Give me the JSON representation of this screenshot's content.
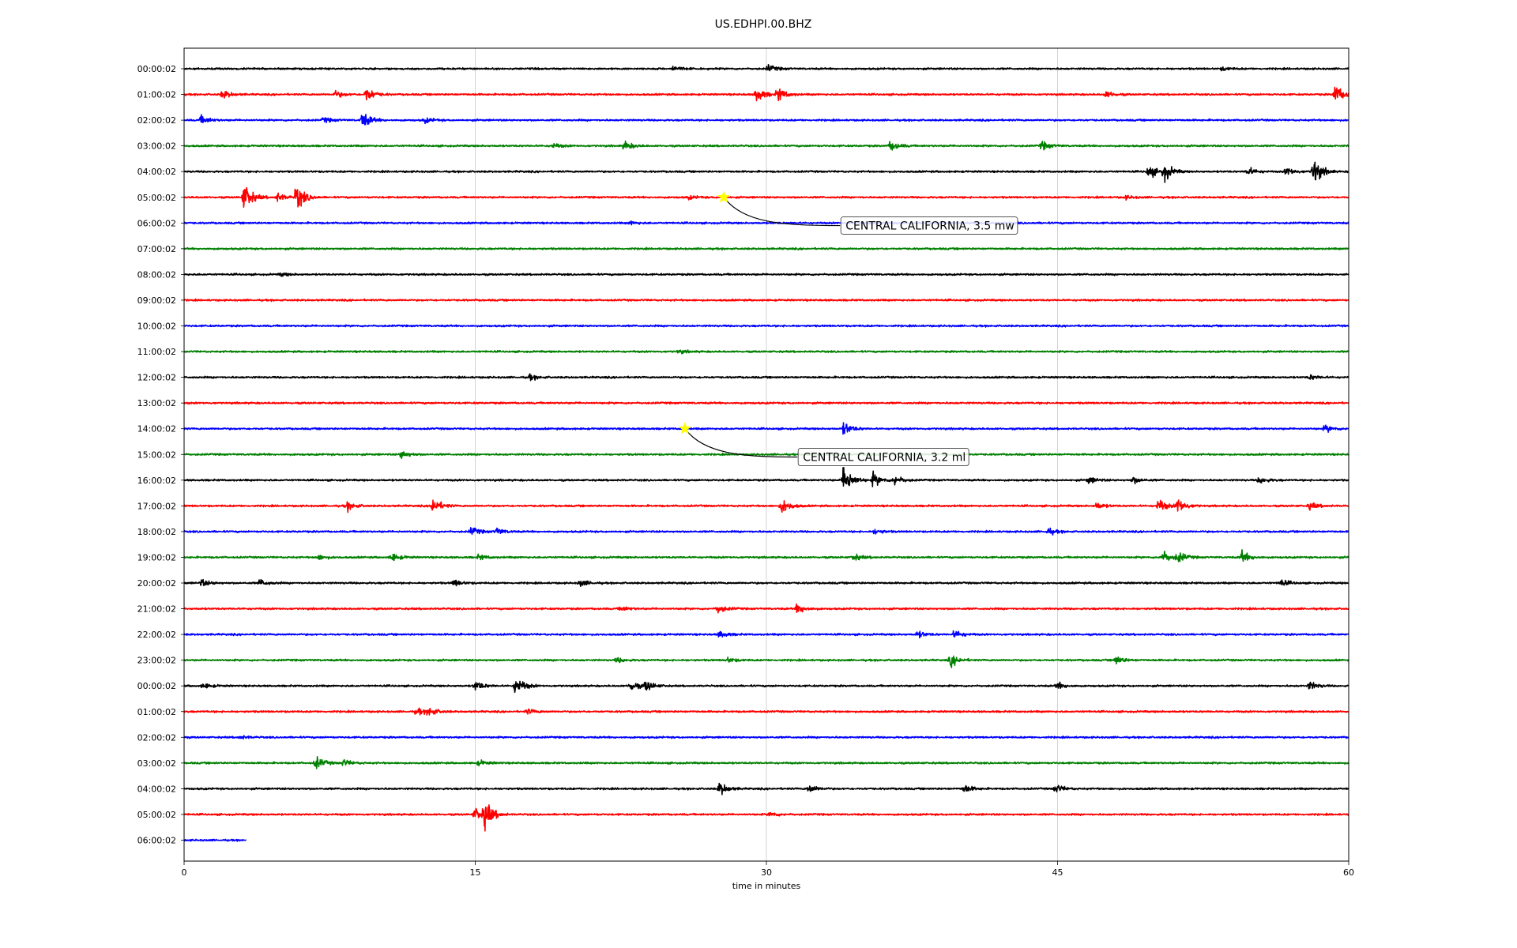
{
  "chart_data": {
    "type": "line",
    "title": "US.EDHPI.00.BHZ",
    "xlabel": "time in minutes",
    "ylabel": "",
    "xlim": [
      0,
      60
    ],
    "x_ticks": [
      "0",
      "15",
      "30",
      "45",
      "60"
    ],
    "x_tick_values": [
      0,
      15,
      30,
      45,
      60
    ],
    "grid": "vertical",
    "legend": "none",
    "trace_colors": [
      "#000000",
      "#ff0000",
      "#0000ff",
      "#008000"
    ],
    "row_labels": [
      "00:00:02",
      "01:00:02",
      "02:00:02",
      "03:00:02",
      "04:00:02",
      "05:00:02",
      "06:00:02",
      "07:00:02",
      "08:00:02",
      "09:00:02",
      "10:00:02",
      "11:00:02",
      "12:00:02",
      "13:00:02",
      "14:00:02",
      "15:00:02",
      "16:00:02",
      "17:00:02",
      "18:00:02",
      "19:00:02",
      "20:00:02",
      "21:00:02",
      "22:00:02",
      "23:00:02",
      "00:00:02",
      "01:00:02",
      "02:00:02",
      "03:00:02",
      "04:00:02",
      "05:00:02",
      "06:00:02"
    ],
    "last_row_end_minute": 3.2,
    "events": [
      {
        "row": 0,
        "t": 25.2,
        "amp": 0.3
      },
      {
        "row": 0,
        "t": 30.1,
        "amp": 0.4
      },
      {
        "row": 0,
        "t": 53.5,
        "amp": 0.2
      },
      {
        "row": 1,
        "t": 2.0,
        "amp": 0.5
      },
      {
        "row": 1,
        "t": 7.8,
        "amp": 0.4
      },
      {
        "row": 1,
        "t": 9.4,
        "amp": 0.9
      },
      {
        "row": 1,
        "t": 29.5,
        "amp": 0.9
      },
      {
        "row": 1,
        "t": 30.6,
        "amp": 0.8
      },
      {
        "row": 1,
        "t": 47.5,
        "amp": 0.4
      },
      {
        "row": 1,
        "t": 59.3,
        "amp": 1.2
      },
      {
        "row": 2,
        "t": 0.9,
        "amp": 0.5
      },
      {
        "row": 2,
        "t": 7.2,
        "amp": 0.3
      },
      {
        "row": 2,
        "t": 9.2,
        "amp": 1.0
      },
      {
        "row": 2,
        "t": 12.4,
        "amp": 0.3
      },
      {
        "row": 3,
        "t": 19.0,
        "amp": 0.3
      },
      {
        "row": 3,
        "t": 22.7,
        "amp": 0.5
      },
      {
        "row": 3,
        "t": 36.4,
        "amp": 0.6
      },
      {
        "row": 3,
        "t": 44.2,
        "amp": 0.5
      },
      {
        "row": 4,
        "t": 49.7,
        "amp": 0.8
      },
      {
        "row": 4,
        "t": 50.5,
        "amp": 1.0
      },
      {
        "row": 4,
        "t": 54.8,
        "amp": 0.5
      },
      {
        "row": 4,
        "t": 56.8,
        "amp": 0.5
      },
      {
        "row": 4,
        "t": 58.2,
        "amp": 1.6
      },
      {
        "row": 5,
        "t": 3.1,
        "amp": 1.7
      },
      {
        "row": 5,
        "t": 4.8,
        "amp": 0.5
      },
      {
        "row": 5,
        "t": 5.8,
        "amp": 1.6
      },
      {
        "row": 5,
        "t": 26.0,
        "amp": 0.2
      },
      {
        "row": 5,
        "t": 48.5,
        "amp": 0.2
      },
      {
        "row": 6,
        "t": 23.0,
        "amp": 0.2
      },
      {
        "row": 8,
        "t": 5.0,
        "amp": 0.2
      },
      {
        "row": 11,
        "t": 25.5,
        "amp": 0.2
      },
      {
        "row": 12,
        "t": 17.8,
        "amp": 0.3
      },
      {
        "row": 12,
        "t": 58.0,
        "amp": 0.3
      },
      {
        "row": 14,
        "t": 34.0,
        "amp": 0.8
      },
      {
        "row": 14,
        "t": 58.8,
        "amp": 0.4
      },
      {
        "row": 15,
        "t": 11.2,
        "amp": 0.5
      },
      {
        "row": 16,
        "t": 34.0,
        "amp": 2.0
      },
      {
        "row": 16,
        "t": 35.5,
        "amp": 0.8
      },
      {
        "row": 16,
        "t": 36.6,
        "amp": 0.6
      },
      {
        "row": 16,
        "t": 46.6,
        "amp": 0.4
      },
      {
        "row": 16,
        "t": 48.9,
        "amp": 0.4
      },
      {
        "row": 16,
        "t": 55.4,
        "amp": 0.4
      },
      {
        "row": 17,
        "t": 8.4,
        "amp": 0.5
      },
      {
        "row": 17,
        "t": 12.8,
        "amp": 1.0
      },
      {
        "row": 17,
        "t": 30.8,
        "amp": 0.9
      },
      {
        "row": 17,
        "t": 47.0,
        "amp": 0.4
      },
      {
        "row": 17,
        "t": 50.2,
        "amp": 0.8
      },
      {
        "row": 17,
        "t": 51.2,
        "amp": 0.9
      },
      {
        "row": 17,
        "t": 58.0,
        "amp": 0.4
      },
      {
        "row": 18,
        "t": 14.8,
        "amp": 0.5
      },
      {
        "row": 18,
        "t": 16.1,
        "amp": 0.4
      },
      {
        "row": 18,
        "t": 35.6,
        "amp": 0.3
      },
      {
        "row": 18,
        "t": 44.5,
        "amp": 0.4
      },
      {
        "row": 19,
        "t": 6.9,
        "amp": 0.3
      },
      {
        "row": 19,
        "t": 10.7,
        "amp": 0.5
      },
      {
        "row": 19,
        "t": 15.2,
        "amp": 0.3
      },
      {
        "row": 19,
        "t": 34.5,
        "amp": 0.4
      },
      {
        "row": 19,
        "t": 50.4,
        "amp": 0.8
      },
      {
        "row": 19,
        "t": 51.2,
        "amp": 0.6
      },
      {
        "row": 19,
        "t": 54.5,
        "amp": 0.7
      },
      {
        "row": 20,
        "t": 0.9,
        "amp": 0.4
      },
      {
        "row": 20,
        "t": 3.9,
        "amp": 0.4
      },
      {
        "row": 20,
        "t": 13.9,
        "amp": 0.4
      },
      {
        "row": 20,
        "t": 20.4,
        "amp": 0.4
      },
      {
        "row": 20,
        "t": 56.5,
        "amp": 0.4
      },
      {
        "row": 21,
        "t": 22.5,
        "amp": 0.3
      },
      {
        "row": 21,
        "t": 27.5,
        "amp": 0.5
      },
      {
        "row": 21,
        "t": 31.6,
        "amp": 0.6
      },
      {
        "row": 22,
        "t": 27.6,
        "amp": 0.4
      },
      {
        "row": 22,
        "t": 37.8,
        "amp": 0.4
      },
      {
        "row": 22,
        "t": 39.7,
        "amp": 0.5
      },
      {
        "row": 23,
        "t": 22.3,
        "amp": 0.3
      },
      {
        "row": 23,
        "t": 28.0,
        "amp": 0.3
      },
      {
        "row": 23,
        "t": 39.5,
        "amp": 0.7
      },
      {
        "row": 23,
        "t": 48.0,
        "amp": 0.5
      },
      {
        "row": 24,
        "t": 1.0,
        "amp": 0.3
      },
      {
        "row": 24,
        "t": 15.0,
        "amp": 0.6
      },
      {
        "row": 24,
        "t": 17.1,
        "amp": 1.1
      },
      {
        "row": 24,
        "t": 23.0,
        "amp": 0.6
      },
      {
        "row": 24,
        "t": 23.8,
        "amp": 0.6
      },
      {
        "row": 24,
        "t": 45.0,
        "amp": 0.4
      },
      {
        "row": 24,
        "t": 58.0,
        "amp": 0.5
      },
      {
        "row": 25,
        "t": 12.0,
        "amp": 0.4
      },
      {
        "row": 25,
        "t": 12.6,
        "amp": 0.5
      },
      {
        "row": 25,
        "t": 17.7,
        "amp": 0.3
      },
      {
        "row": 26,
        "t": 2.9,
        "amp": 0.2
      },
      {
        "row": 27,
        "t": 6.8,
        "amp": 0.7
      },
      {
        "row": 27,
        "t": 8.2,
        "amp": 0.4
      },
      {
        "row": 27,
        "t": 15.2,
        "amp": 0.3
      },
      {
        "row": 28,
        "t": 27.6,
        "amp": 0.8
      },
      {
        "row": 28,
        "t": 32.2,
        "amp": 0.5
      },
      {
        "row": 28,
        "t": 40.2,
        "amp": 0.5
      },
      {
        "row": 28,
        "t": 44.9,
        "amp": 0.5
      },
      {
        "row": 29,
        "t": 15.0,
        "amp": 0.8
      },
      {
        "row": 29,
        "t": 15.5,
        "amp": 1.6
      },
      {
        "row": 29,
        "t": 30.2,
        "amp": 0.3
      }
    ],
    "annotations": [
      {
        "text": "CENTRAL CALIFORNIA, 3.5 mw",
        "row": 5,
        "t": 27.8,
        "label_t": 34.0,
        "label_row": 6.1,
        "marker_color": "#ffff00"
      },
      {
        "text": "CENTRAL CALIFORNIA, 3.2 ml",
        "row": 14,
        "t": 25.8,
        "label_t": 31.8,
        "label_row": 15.1,
        "marker_color": "#ffff00"
      }
    ]
  }
}
